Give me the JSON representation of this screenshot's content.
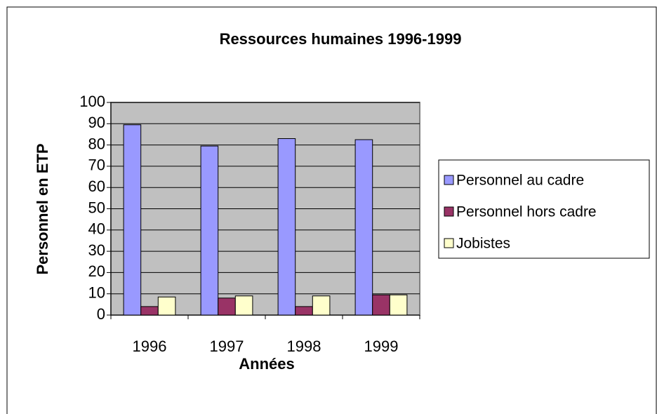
{
  "chart_data": {
    "type": "bar",
    "title": "Ressources humaines 1996-1999",
    "x_label": "Années",
    "y_label": "Personnel en ETP",
    "categories": [
      "1996",
      "1997",
      "1998",
      "1999"
    ],
    "series": [
      {
        "name": "Personnel au cadre",
        "color": "#9999ff",
        "values": [
          89.5,
          79.5,
          83,
          82.5
        ]
      },
      {
        "name": "Personnel hors cadre",
        "color": "#993366",
        "values": [
          4,
          8,
          4,
          9.5
        ]
      },
      {
        "name": "Jobistes",
        "color": "#ffffcc",
        "values": [
          8.5,
          9,
          9,
          9.5
        ]
      }
    ],
    "ylim": [
      0,
      100
    ],
    "yticks": [
      0,
      10,
      20,
      30,
      40,
      50,
      60,
      70,
      80,
      90,
      100
    ],
    "grid": true,
    "legend": "right",
    "plot_background": "#c0c0c0"
  }
}
